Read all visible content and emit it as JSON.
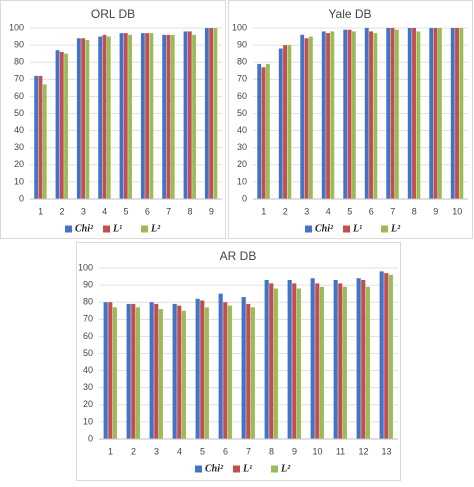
{
  "chart_data": [
    {
      "type": "bar",
      "title": "ORL DB",
      "categories": [
        "1",
        "2",
        "3",
        "4",
        "5",
        "6",
        "7",
        "8",
        "9"
      ],
      "series": [
        {
          "name": "Chi²",
          "color": "#4472c4",
          "values": [
            72,
            87,
            94,
            95,
            97,
            97,
            96,
            98,
            100
          ]
        },
        {
          "name": "L¹",
          "color": "#c0504d",
          "values": [
            72,
            86,
            94,
            96,
            97,
            97,
            96,
            98,
            100
          ]
        },
        {
          "name": "L²",
          "color": "#9bbb59",
          "values": [
            67,
            85,
            93,
            95,
            96,
            97,
            96,
            96,
            100
          ]
        }
      ],
      "ylim": [
        0,
        100
      ],
      "yticks": [
        0,
        10,
        20,
        30,
        40,
        50,
        60,
        70,
        80,
        90,
        100
      ],
      "grid": true,
      "legend": "bottom"
    },
    {
      "type": "bar",
      "title": "Yale DB",
      "categories": [
        "1",
        "2",
        "3",
        "4",
        "5",
        "6",
        "7",
        "8",
        "9",
        "10"
      ],
      "series": [
        {
          "name": "Chi²",
          "color": "#4472c4",
          "values": [
            79,
            88,
            96,
            98,
            99,
            100,
            100,
            100,
            100,
            100
          ]
        },
        {
          "name": "L¹",
          "color": "#c0504d",
          "values": [
            77,
            90,
            94,
            97,
            99,
            98,
            100,
            100,
            100,
            100
          ]
        },
        {
          "name": "L²",
          "color": "#9bbb59",
          "values": [
            79,
            90,
            95,
            98,
            98,
            97,
            99,
            98,
            100,
            100
          ]
        }
      ],
      "ylim": [
        0,
        100
      ],
      "yticks": [
        0,
        10,
        20,
        30,
        40,
        50,
        60,
        70,
        80,
        90,
        100
      ],
      "grid": true,
      "legend": "bottom"
    },
    {
      "type": "bar",
      "title": "AR DB",
      "categories": [
        "1",
        "2",
        "3",
        "4",
        "5",
        "6",
        "7",
        "8",
        "9",
        "10",
        "11",
        "12",
        "13"
      ],
      "series": [
        {
          "name": "Chi²",
          "color": "#4472c4",
          "values": [
            80,
            79,
            80,
            79,
            82,
            85,
            83,
            93,
            93,
            94,
            93,
            94,
            98
          ]
        },
        {
          "name": "L¹",
          "color": "#c0504d",
          "values": [
            80,
            79,
            79,
            78,
            81,
            80,
            79,
            91,
            91,
            91,
            91,
            93,
            97
          ]
        },
        {
          "name": "L²",
          "color": "#9bbb59",
          "values": [
            77,
            77,
            76,
            75,
            77,
            78,
            77,
            88,
            88,
            89,
            89,
            89,
            96
          ]
        }
      ],
      "ylim": [
        0,
        100
      ],
      "yticks": [
        0,
        10,
        20,
        30,
        40,
        50,
        60,
        70,
        80,
        90,
        100
      ],
      "grid": true,
      "legend": "bottom"
    }
  ]
}
